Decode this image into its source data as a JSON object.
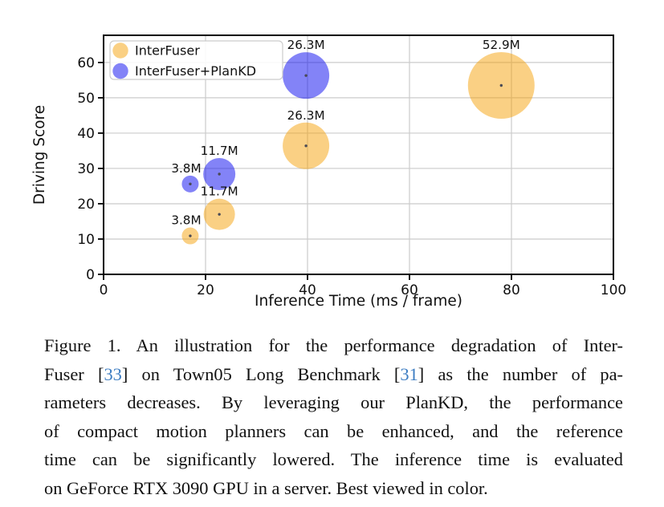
{
  "chart_data": {
    "type": "scatter",
    "title": "",
    "xlabel": "Inference Time (ms / frame)",
    "ylabel": "Driving Score",
    "xlim": [
      0,
      100
    ],
    "ylim": [
      0,
      67.7
    ],
    "xticks": [
      0,
      20,
      40,
      60,
      80,
      100
    ],
    "yticks": [
      0,
      10,
      20,
      30,
      40,
      50,
      60
    ],
    "grid": true,
    "grid_color": "#cbcbcb",
    "frame_color": "#000000",
    "legend": {
      "position": "upper-left",
      "entries": [
        {
          "name": "InterFuser",
          "color": "#F5A109",
          "opacity": 0.5
        },
        {
          "name": "InterFuser+PlanKD",
          "color": "#0808F0",
          "opacity": 0.5
        }
      ]
    },
    "series": [
      {
        "name": "InterFuser",
        "color": "#F5A109",
        "opacity": 0.5,
        "points": [
          {
            "label": "3.8M",
            "x": 17.0,
            "y": 10.9,
            "r": 10.5,
            "label_dx": -5
          },
          {
            "label": "11.7M",
            "x": 22.7,
            "y": 17.0,
            "r": 19.5,
            "label_dx": 0
          },
          {
            "label": "26.3M",
            "x": 39.7,
            "y": 36.4,
            "r": 29.0,
            "label_dx": 0
          },
          {
            "label": "52.9M",
            "x": 78.0,
            "y": 53.5,
            "r": 41.5,
            "label_dx": 0
          }
        ]
      },
      {
        "name": "InterFuser+PlanKD",
        "color": "#0808F0",
        "opacity": 0.5,
        "points": [
          {
            "label": "3.8M",
            "x": 17.0,
            "y": 25.6,
            "r": 10.5,
            "label_dx": -5
          },
          {
            "label": "11.7M",
            "x": 22.7,
            "y": 28.4,
            "r": 20.0,
            "label_dx": 0
          },
          {
            "label": "26.3M",
            "x": 39.7,
            "y": 56.3,
            "r": 29.0,
            "label_dx": 0
          }
        ]
      }
    ],
    "point_dot_color": "#4a4a55"
  },
  "caption": {
    "cite_color": "#3D7DC2",
    "lines": [
      {
        "last": false,
        "segments": [
          {
            "t": "Figure 1. An illustration for the performance degradation of Inter-",
            "cite": false
          }
        ]
      },
      {
        "last": false,
        "segments": [
          {
            "t": "Fuser [",
            "cite": false
          },
          {
            "t": "33",
            "cite": true
          },
          {
            "t": "] on Town05 Long Benchmark [",
            "cite": false
          },
          {
            "t": "31",
            "cite": true
          },
          {
            "t": "] as the number of pa-",
            "cite": false
          }
        ]
      },
      {
        "last": false,
        "segments": [
          {
            "t": "rameters decreases. By leveraging our PlanKD, the performance",
            "cite": false
          }
        ]
      },
      {
        "last": false,
        "segments": [
          {
            "t": "of compact motion planners can be enhanced, and the reference",
            "cite": false
          }
        ]
      },
      {
        "last": false,
        "segments": [
          {
            "t": "time can be significantly lowered. The inference time is evaluated",
            "cite": false
          }
        ]
      },
      {
        "last": true,
        "segments": [
          {
            "t": "on GeForce RTX 3090 GPU in a server. Best viewed in color.",
            "cite": false
          }
        ]
      }
    ]
  }
}
